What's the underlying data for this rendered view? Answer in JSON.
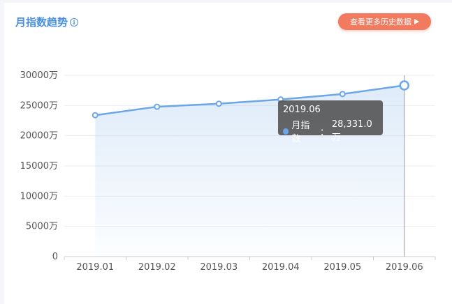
{
  "header": {
    "title": "月指数趋势",
    "info_icon": "info-icon",
    "history_button": "查看更多历史数据",
    "history_icon": "play-triangle-icon"
  },
  "colors": {
    "accent": "#4a90e2",
    "line": "#6ba6e8",
    "button": "#f27a5f"
  },
  "tooltip": {
    "title": "2019.06",
    "series_name": "月指数",
    "value_text": "28,331.0万"
  },
  "chart_data": {
    "type": "line",
    "categories": [
      "2019.01",
      "2019.02",
      "2019.03",
      "2019.04",
      "2019.05",
      "2019.06"
    ],
    "series": [
      {
        "name": "月指数",
        "values": [
          23400,
          24800,
          25300,
          26000,
          26900,
          28331
        ]
      }
    ],
    "y_ticks": [
      "0",
      "5000万",
      "10000万",
      "15000万",
      "20000万",
      "25000万",
      "30000万"
    ],
    "ylim": [
      0,
      30000
    ],
    "highlighted_index": 5,
    "grid": true,
    "area_fill": true
  }
}
